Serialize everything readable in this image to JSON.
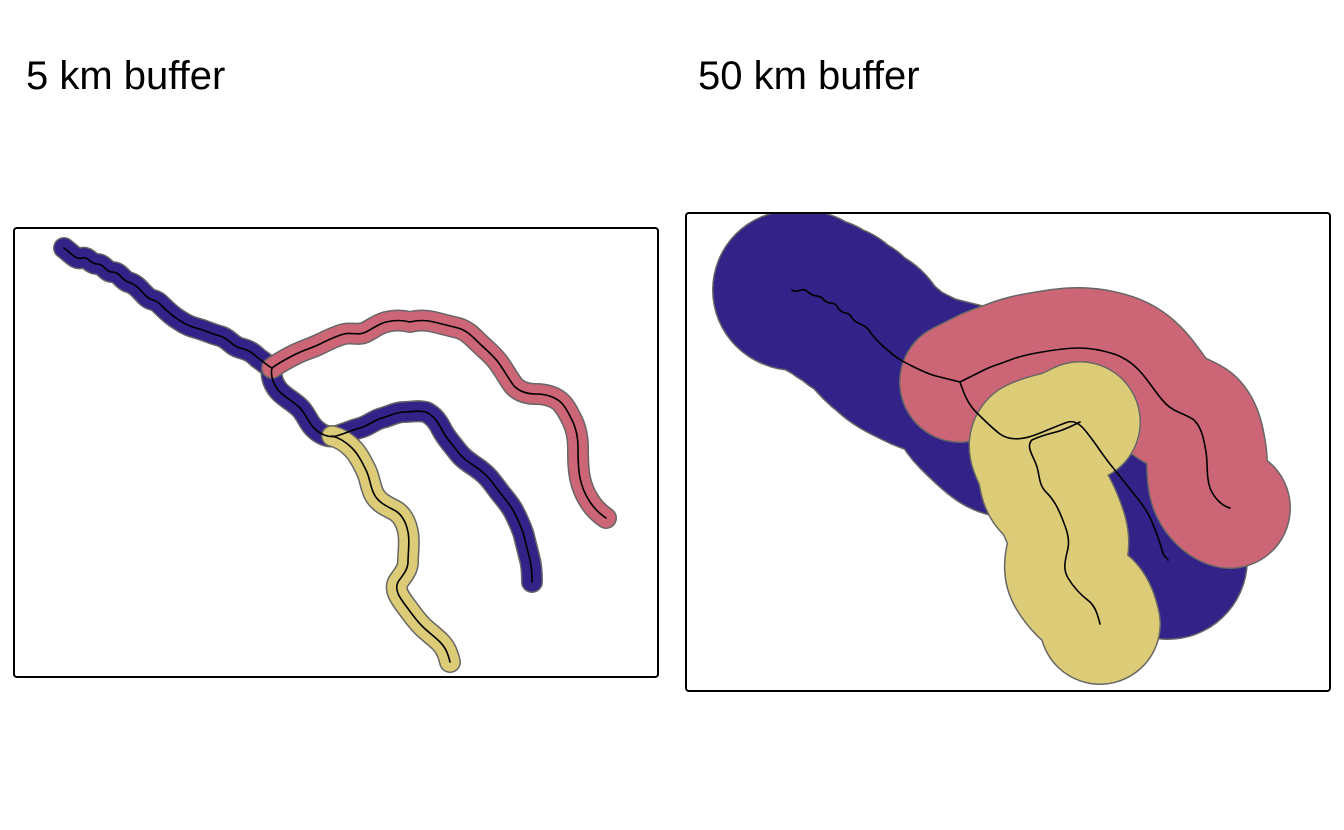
{
  "panels": [
    {
      "title": "5 km buffer"
    },
    {
      "title": "50 km buffer"
    }
  ],
  "colors": {
    "buffer_purple": "#332288",
    "buffer_red": "#CC6677",
    "buffer_yellow": "#DDCC77",
    "buffer_outline": "#666666",
    "river_line": "#000000",
    "frame": "#000000"
  }
}
